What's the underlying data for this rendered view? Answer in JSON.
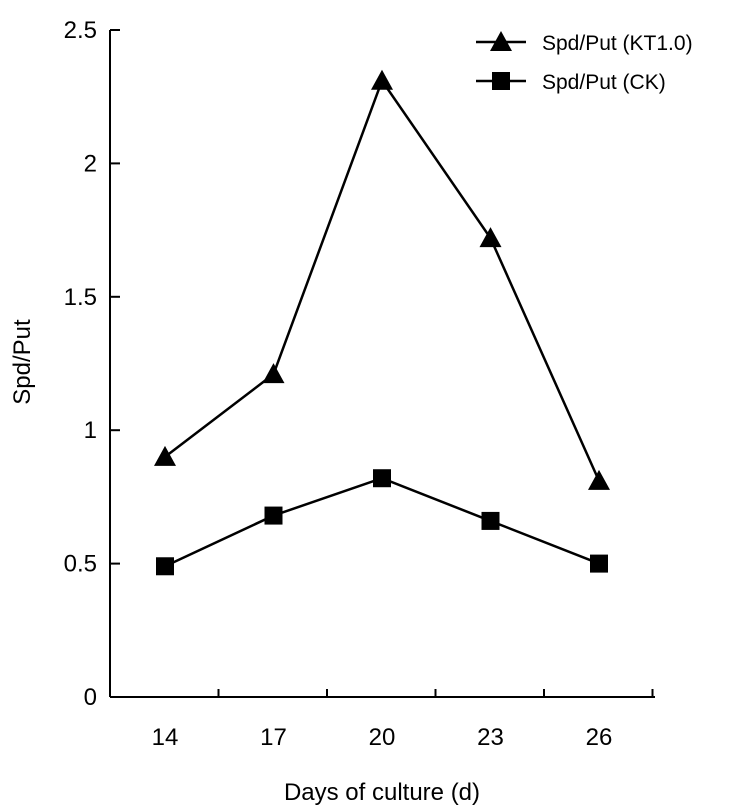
{
  "chart_data": {
    "type": "line",
    "categories": [
      "14",
      "17",
      "20",
      "23",
      "26"
    ],
    "series": [
      {
        "name": "Spd/Put (KT1.0)",
        "marker": "triangle",
        "values": [
          0.9,
          1.21,
          2.31,
          1.72,
          0.81
        ]
      },
      {
        "name": "Spd/Put (CK)",
        "marker": "square",
        "values": [
          0.49,
          0.68,
          0.82,
          0.66,
          0.5
        ]
      }
    ],
    "y_ticks": [
      "0",
      "0.5",
      "1",
      "1.5",
      "2",
      "2.5"
    ],
    "ylim": [
      0,
      2.5
    ],
    "xlabel": "Days of culture (d)",
    "ylabel": "Spd/Put",
    "grid": false,
    "legend_position": "top-right",
    "colors": {
      "line": "#000000",
      "marker": "#000000"
    }
  }
}
